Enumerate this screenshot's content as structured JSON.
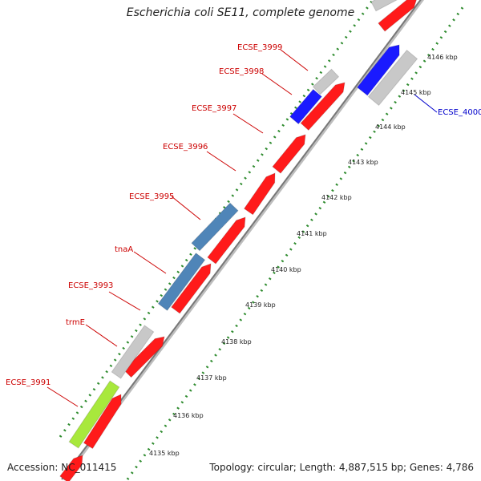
{
  "title": "Escherichia coli SE11, complete genome",
  "footer": {
    "accession": "Accession: NC_011415",
    "topology": "Topology: circular; Length: 4,887,515 bp; Genes: 4,786"
  },
  "colors": {
    "red": "#ff1a1a",
    "gray": "#c8c8c8",
    "blue": "#1a1aff",
    "steel": "#4f85b8",
    "lime": "#a8e83c",
    "label_red": "#cc0000",
    "label_blue": "#0000cc",
    "dots": "#2e8b2e"
  },
  "genes": [
    {
      "id": "g0",
      "kind": "gray"
    },
    {
      "id": "g1",
      "kind": "red"
    },
    {
      "id": "g2",
      "kind": "gray"
    },
    {
      "id": "g3",
      "kind": "blue"
    },
    {
      "id": "g4",
      "kind": "red"
    },
    {
      "id": "g5",
      "kind": "blue"
    },
    {
      "id": "g6",
      "kind": "gray"
    },
    {
      "id": "g7",
      "kind": "red"
    },
    {
      "id": "g8",
      "kind": "red"
    },
    {
      "id": "g9",
      "kind": "red"
    },
    {
      "id": "g10",
      "kind": "steel"
    },
    {
      "id": "g11",
      "kind": "red"
    },
    {
      "id": "g12",
      "kind": "steel"
    },
    {
      "id": "g13",
      "kind": "red"
    },
    {
      "id": "g14",
      "kind": "gray"
    },
    {
      "id": "g15",
      "kind": "red"
    },
    {
      "id": "g16",
      "kind": "lime"
    },
    {
      "id": "g17",
      "kind": "red"
    }
  ],
  "gene_labels": [
    {
      "text": "ECSE_3999",
      "color": "red"
    },
    {
      "text": "ECSE_3998",
      "color": "red"
    },
    {
      "text": "ECSE_3997",
      "color": "red"
    },
    {
      "text": "ECSE_3996",
      "color": "red"
    },
    {
      "text": "ECSE_3995",
      "color": "red"
    },
    {
      "text": "tnaA",
      "color": "red"
    },
    {
      "text": "ECSE_3993",
      "color": "red"
    },
    {
      "text": "trmE",
      "color": "red"
    },
    {
      "text": "ECSE_3991",
      "color": "red"
    },
    {
      "text": "ECSE_4000",
      "color": "blue"
    }
  ],
  "kbp_ticks": [
    "4135 kbp",
    "4136 kbp",
    "4137 kbp",
    "4138 kbp",
    "4139 kbp",
    "4140 kbp",
    "4141 kbp",
    "4142 kbp",
    "4143 kbp",
    "4144 kbp",
    "4145 kbp",
    "4146 kbp"
  ]
}
